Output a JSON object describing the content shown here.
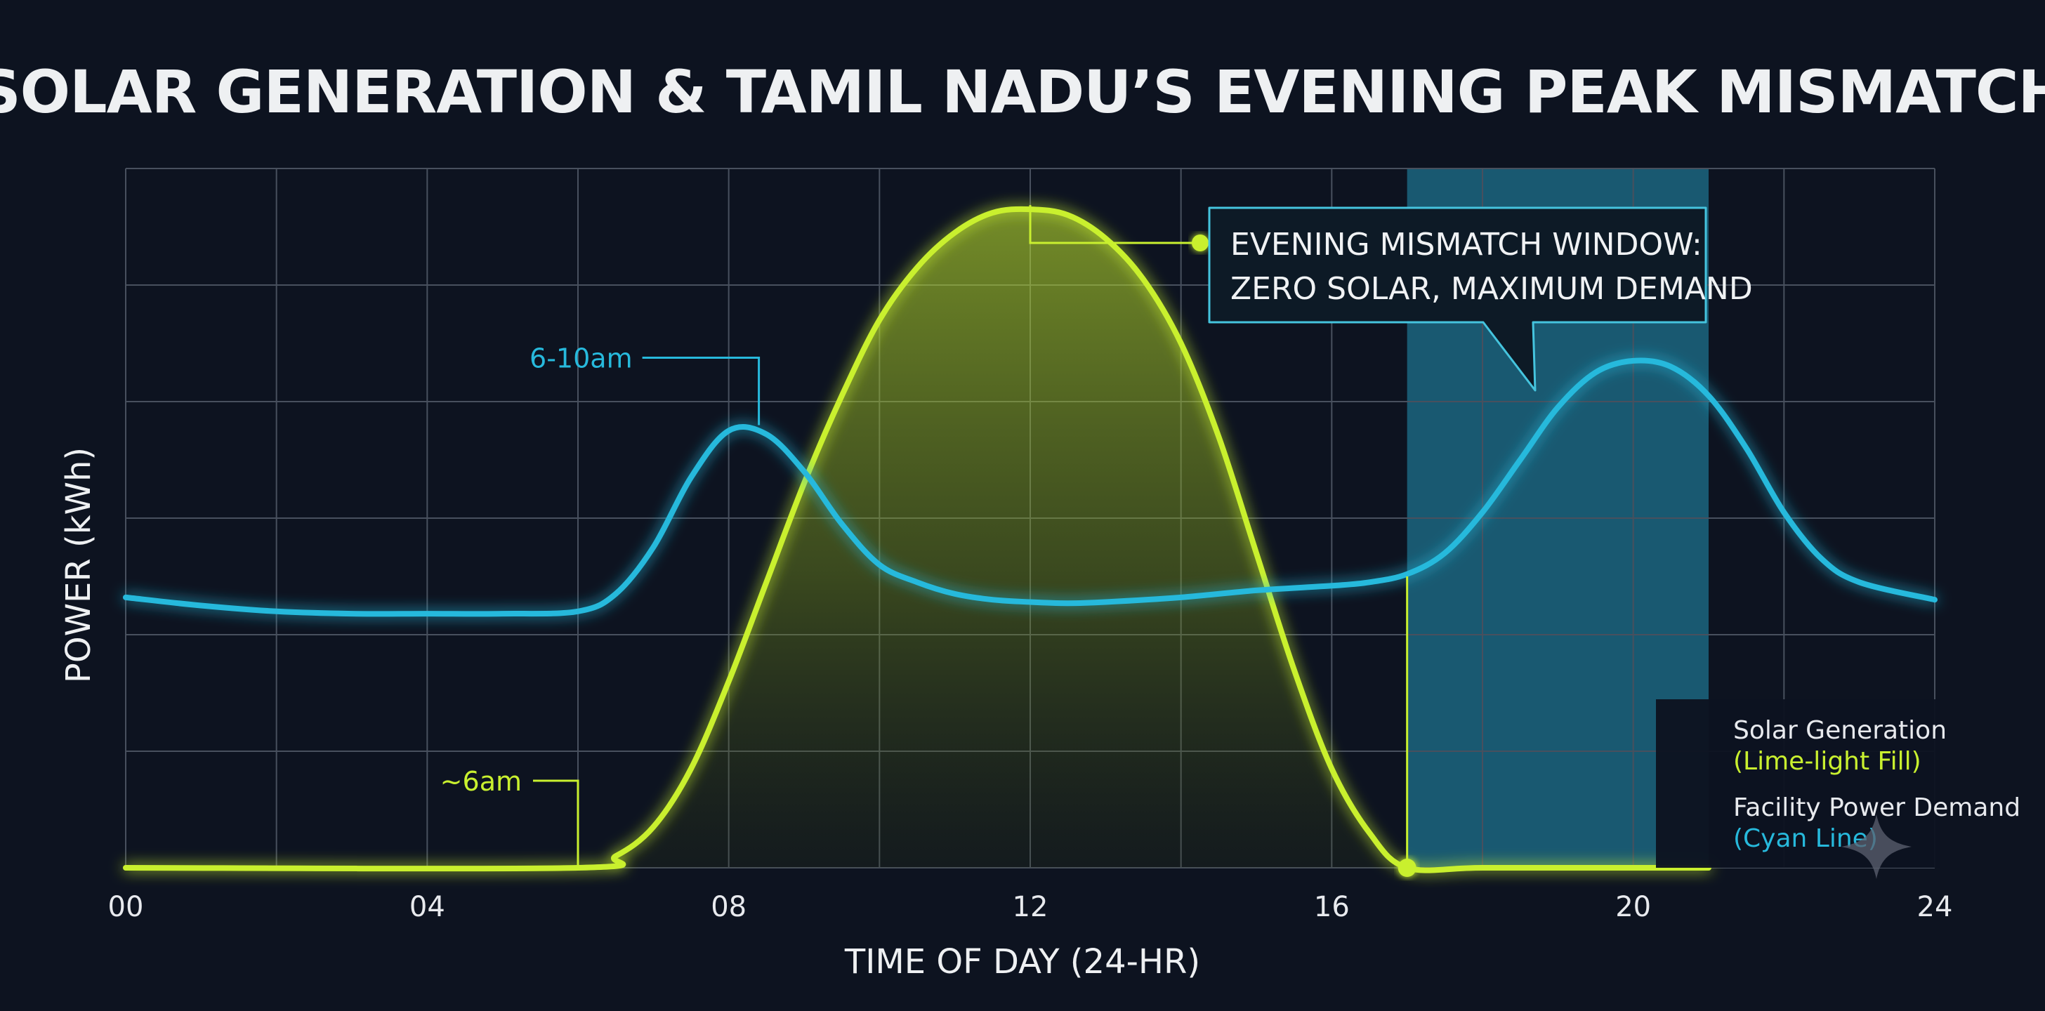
{
  "colors": {
    "background": "#0d1320",
    "solar": "#c9f02f",
    "demand": "#27b9dc",
    "window": "#1d6d88",
    "grid": "#48505e"
  },
  "chart_data": {
    "type": "line",
    "title": "SOLAR GENERATION & TAMIL NADU’S EVENING PEAK MISMATCH",
    "xlabel": "TIME OF DAY (24-HR)",
    "ylabel": "POWER (kWh)",
    "xlim": [
      0,
      24
    ],
    "ylim": [
      0,
      6
    ],
    "x_tick_labels": [
      "00",
      "04",
      "08",
      "12",
      "16",
      "20",
      "24"
    ],
    "x_ticks": [
      0,
      4,
      8,
      12,
      16,
      20,
      24
    ],
    "grid": true,
    "series": [
      {
        "name": "Solar Generation",
        "legend_sub": "(Lime-light Fill)",
        "style": "filled-area",
        "x": [
          0,
          6,
          6.5,
          7,
          7.5,
          8,
          8.5,
          9,
          9.5,
          10,
          10.5,
          11,
          11.5,
          12,
          12.5,
          13,
          13.5,
          14,
          14.5,
          15,
          15.5,
          16,
          16.5,
          17,
          18,
          20,
          21
        ],
        "y": [
          0,
          0,
          0.1,
          0.35,
          0.85,
          1.6,
          2.45,
          3.3,
          4.05,
          4.7,
          5.15,
          5.45,
          5.62,
          5.65,
          5.6,
          5.4,
          5.05,
          4.5,
          3.7,
          2.7,
          1.7,
          0.85,
          0.3,
          0,
          0,
          0,
          0
        ]
      },
      {
        "name": "Facility Power Demand",
        "legend_sub": "(Cyan Line)",
        "style": "line",
        "x": [
          0,
          1,
          2,
          3,
          4,
          5,
          6,
          6.5,
          7,
          7.5,
          8,
          8.5,
          9,
          9.5,
          10,
          10.5,
          11,
          11.5,
          12,
          12.5,
          13,
          14,
          15,
          16,
          16.5,
          17,
          17.5,
          18,
          18.5,
          19,
          19.5,
          20,
          20.5,
          21,
          21.5,
          22,
          22.5,
          23,
          24
        ],
        "y": [
          2.32,
          2.25,
          2.2,
          2.18,
          2.18,
          2.18,
          2.2,
          2.35,
          2.75,
          3.35,
          3.75,
          3.72,
          3.4,
          2.95,
          2.6,
          2.45,
          2.35,
          2.3,
          2.28,
          2.27,
          2.28,
          2.32,
          2.38,
          2.42,
          2.45,
          2.52,
          2.7,
          3.05,
          3.5,
          3.95,
          4.25,
          4.35,
          4.3,
          4.05,
          3.6,
          3.05,
          2.65,
          2.45,
          2.3
        ]
      }
    ],
    "shaded_window": {
      "x_start": 17,
      "x_end": 21
    },
    "annotations": [
      {
        "text": "~6am",
        "x": 6,
        "y": 0,
        "color": "solar"
      },
      {
        "text": "6-10am",
        "x": 8.4,
        "y": 3.75,
        "color": "demand"
      },
      {
        "text": "EVENING MISMATCH WINDOW:",
        "text2": "ZERO SOLAR, MAXIMUM DEMAND",
        "x": 12,
        "y": 5.65,
        "color": "solar"
      }
    ],
    "legend_position": "bottom-right"
  }
}
